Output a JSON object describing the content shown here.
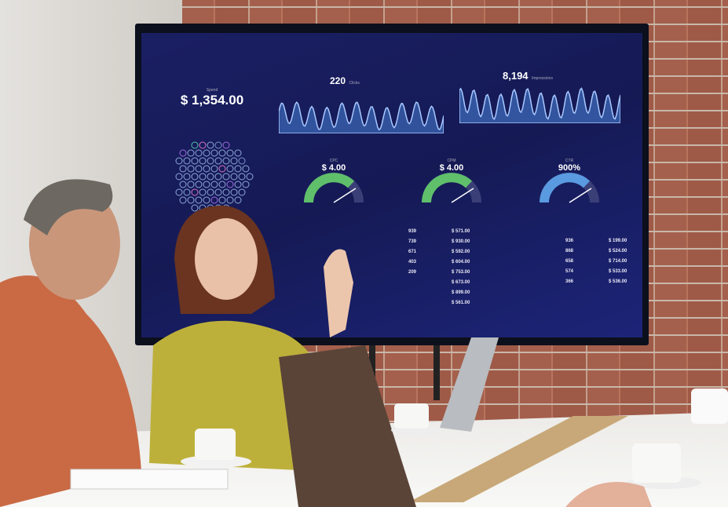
{
  "dashboard": {
    "spend": {
      "label": "Spend",
      "value": "$ 1,354.00"
    },
    "clicks": {
      "label": "Clicks",
      "value": "220"
    },
    "impressions": {
      "label": "Impressions",
      "value": "8,194"
    },
    "gauges": [
      {
        "label": "CPC",
        "value": "$ 4.00"
      },
      {
        "label": "CPM",
        "value": "$ 4.00"
      },
      {
        "label": "CTR",
        "value": "900%"
      }
    ],
    "table_mid": {
      "counts": [
        "939",
        "739",
        "671",
        "403",
        "209"
      ],
      "amounts": [
        "$ 571.00",
        "$ 930.00",
        "$ 592.00",
        "$ 604.00",
        "$ 753.00",
        "$ 673.00",
        "$ 899.00",
        "$ 561.00"
      ]
    },
    "table_right": {
      "counts": [
        "936",
        "868",
        "658",
        "574",
        "366"
      ],
      "amounts": [
        "$ 199.00",
        "$ 524.00",
        "$ 714.00",
        "$ 533.00",
        "$ 536.00"
      ]
    },
    "colors": {
      "background": "#1a1f63",
      "chart": "#4a7fd0",
      "gauge_green": "#5fbf6a",
      "gauge_blue": "#5a9ae0"
    }
  }
}
